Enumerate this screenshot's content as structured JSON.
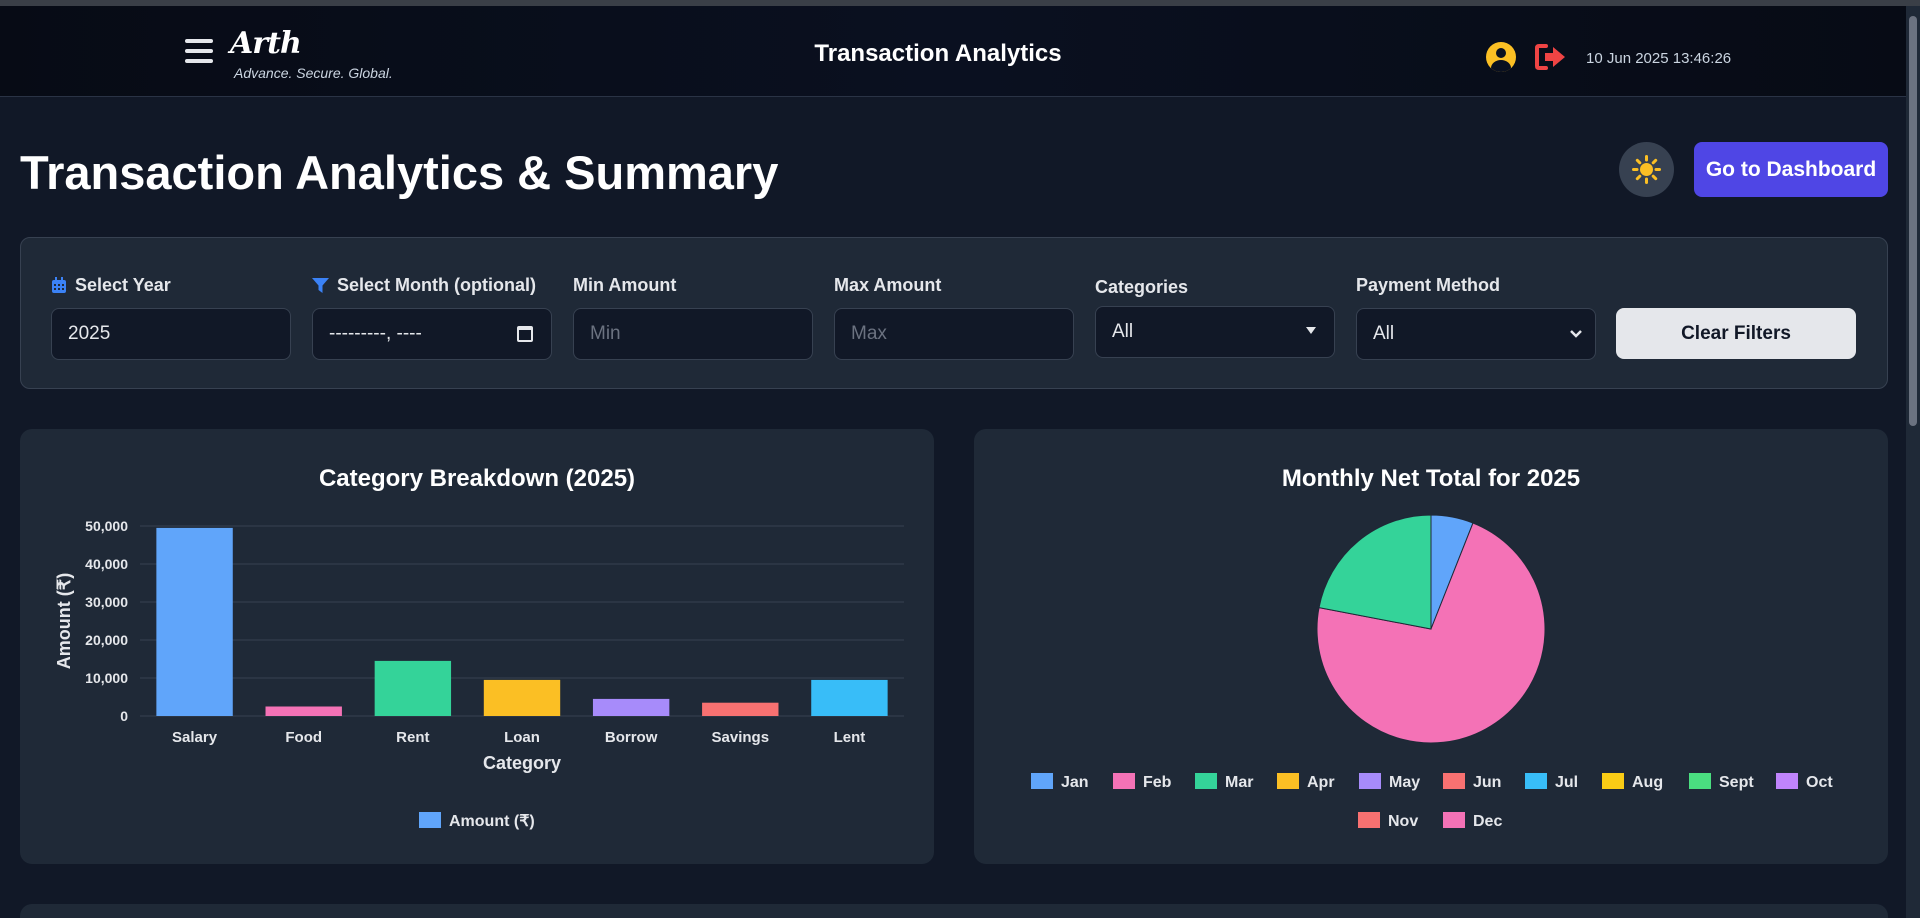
{
  "navbar": {
    "brand_name": "Arth",
    "brand_tagline": "Advance. Secure. Global.",
    "title": "Transaction Analytics",
    "datetime": "10 Jun 2025 13:46:26"
  },
  "header": {
    "page_title": "Transaction Analytics & Summary",
    "dashboard_button": "Go to Dashboard"
  },
  "filters": {
    "year": {
      "label": "Select Year",
      "value": "2025"
    },
    "month": {
      "label": "Select Month (optional)",
      "value": "---------, ----"
    },
    "min_amount": {
      "label": "Min Amount",
      "placeholder": "Min"
    },
    "max_amount": {
      "label": "Max Amount",
      "placeholder": "Max"
    },
    "categories": {
      "label": "Categories",
      "value": "All"
    },
    "payment_method": {
      "label": "Payment Method",
      "value": "All"
    },
    "clear_button": "Clear Filters"
  },
  "colors": {
    "accent": "#4f46e5",
    "palette": [
      "#60a5fa",
      "#f472b6",
      "#34d399",
      "#fbbf24",
      "#a78bfa",
      "#f87171",
      "#38bdf8",
      "#facc15",
      "#4ade80",
      "#c084fc",
      "#f87171",
      "#f472b6"
    ]
  },
  "chart_data": [
    {
      "type": "bar",
      "title": "Category Breakdown (2025)",
      "xlabel": "Category",
      "ylabel": "Amount (₹)",
      "ylim": [
        0,
        50000
      ],
      "ytick_labels": [
        "0",
        "10,000",
        "20,000",
        "30,000",
        "40,000",
        "50,000"
      ],
      "categories": [
        "Salary",
        "Food",
        "Rent",
        "Loan",
        "Borrow",
        "Savings",
        "Lent"
      ],
      "series": [
        {
          "name": "Amount (₹)",
          "values": [
            49500,
            2500,
            14500,
            9500,
            4500,
            3500,
            9500
          ]
        }
      ],
      "legend": "bottom",
      "grid": true
    },
    {
      "type": "pie",
      "title": "Monthly Net Total for 2025",
      "labels": [
        "Jan",
        "Feb",
        "Mar",
        "Apr",
        "May",
        "Jun",
        "Jul",
        "Aug",
        "Sept",
        "Oct",
        "Nov",
        "Dec"
      ],
      "values": [
        6,
        72,
        22,
        0,
        0,
        0,
        0,
        0,
        0,
        0,
        0,
        0
      ],
      "legend": "bottom"
    }
  ]
}
